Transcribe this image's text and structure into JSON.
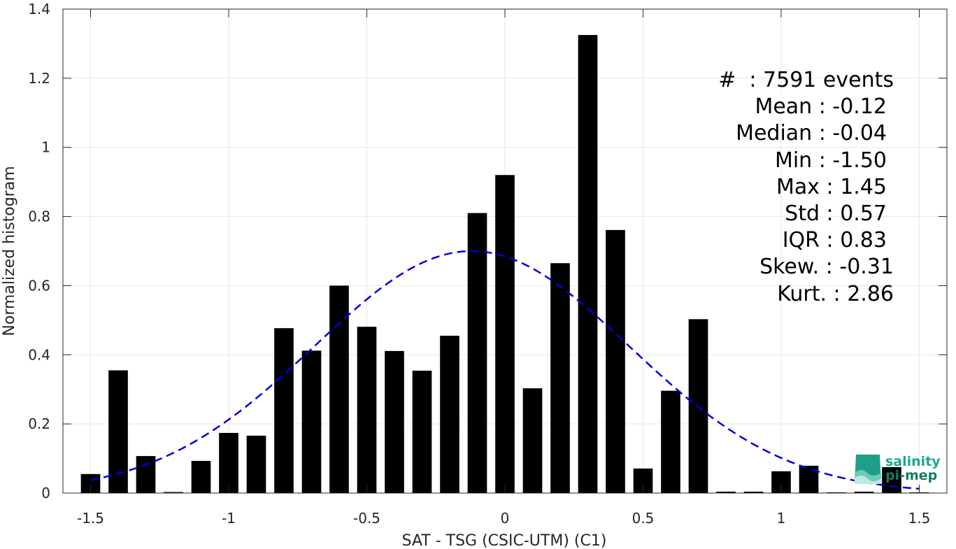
{
  "chart_data": {
    "type": "bar",
    "xlabel": "SAT - TSG (CSIC-UTM) (C1)",
    "ylabel": "Normalized histogram",
    "xlim": [
      -1.6,
      1.6
    ],
    "ylim": [
      0,
      1.4
    ],
    "x_ticks": [
      -1.5,
      -1,
      -0.5,
      0,
      0.5,
      1,
      1.5
    ],
    "x_tick_labels": [
      "-1.5",
      "-1",
      "-0.5",
      "0",
      "0.5",
      "1",
      "1.5"
    ],
    "y_ticks": [
      0,
      0.2,
      0.4,
      0.6,
      0.8,
      1,
      1.2,
      1.4
    ],
    "y_tick_labels": [
      "0",
      "0.2",
      "0.4",
      "0.6",
      "0.8",
      "1",
      "1.2",
      "1.4"
    ],
    "grid": true,
    "bar_width": 0.07,
    "bars": {
      "x": [
        -1.5,
        -1.4,
        -1.3,
        -1.2,
        -1.1,
        -1.0,
        -0.9,
        -0.8,
        -0.7,
        -0.6,
        -0.5,
        -0.4,
        -0.3,
        -0.2,
        -0.1,
        0.0,
        0.1,
        0.2,
        0.3,
        0.4,
        0.5,
        0.6,
        0.7,
        0.8,
        0.9,
        1.0,
        1.1,
        1.2,
        1.3,
        1.4,
        1.5
      ],
      "values": [
        0.055,
        0.355,
        0.107,
        0.003,
        0.093,
        0.174,
        0.166,
        0.477,
        0.412,
        0.6,
        0.481,
        0.411,
        0.354,
        0.455,
        0.81,
        0.92,
        0.303,
        0.665,
        1.325,
        0.761,
        0.071,
        0.296,
        0.503,
        0.004,
        0.004,
        0.063,
        0.079,
        0.002,
        0.004,
        0.075,
        0.002
      ]
    },
    "normal_fit": {
      "style": "dashed",
      "mean": -0.12,
      "std": 0.57,
      "x_range": [
        -1.5,
        1.5
      ]
    },
    "colors": {
      "bars": "#000000",
      "fit": "#0000dd",
      "grid": "#e6e6e6",
      "axis": "#262626"
    }
  },
  "stats": {
    "events": "#  : 7591 events",
    "mean": "Mean : -0.12",
    "median": "Median : -0.04",
    "min": "Min : -1.50",
    "max": "Max : 1.45",
    "std": "Std : 0.57",
    "iqr": "IQR : 0.83",
    "skew": "Skew. : -0.31",
    "kurt": "Kurt. : 2.86"
  },
  "logo": {
    "line1": "salinity",
    "line2": "pi-mep"
  }
}
